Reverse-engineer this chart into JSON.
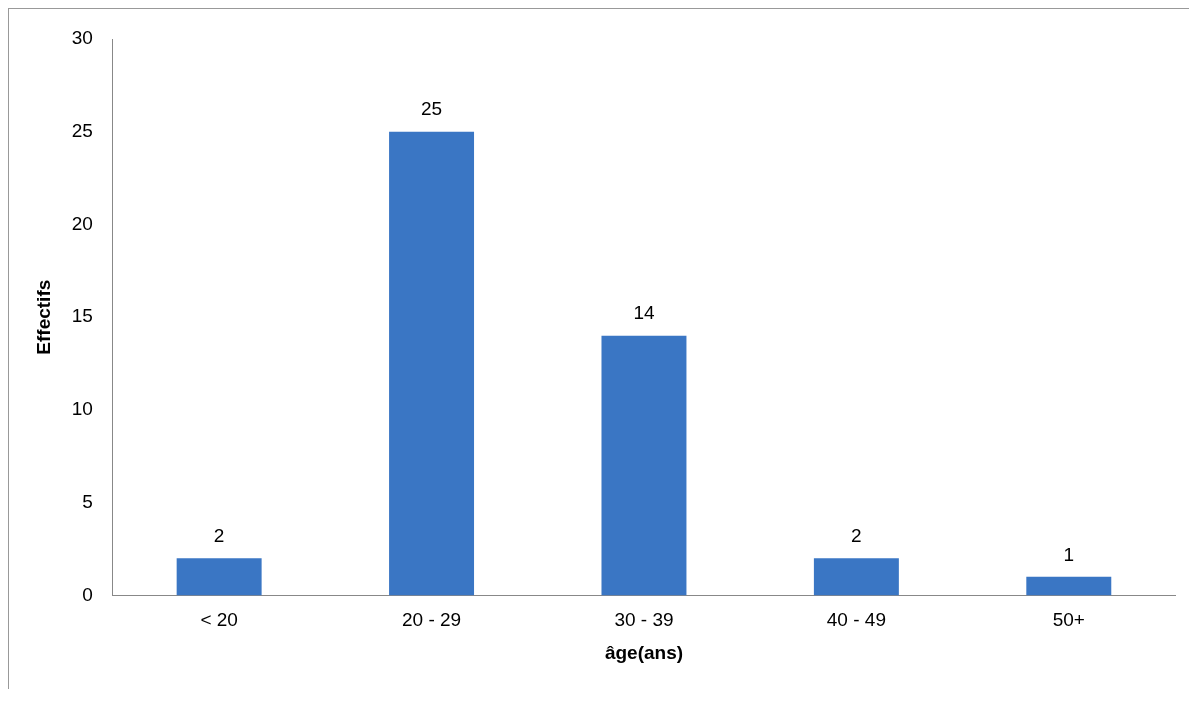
{
  "chart_data": {
    "type": "bar",
    "xlabel": "âge(ans)",
    "ylabel": "Effectifs",
    "categories": [
      "< 20",
      "20 - 29",
      "30 - 39",
      "40 - 49",
      "50+"
    ],
    "values": [
      2,
      25,
      14,
      2,
      1
    ],
    "color": "#3a76c4",
    "ylim": [
      0,
      30
    ],
    "yticks": [
      0,
      5,
      10,
      15,
      20,
      25,
      30
    ],
    "grid": false,
    "legend": false,
    "data_labels": true
  }
}
